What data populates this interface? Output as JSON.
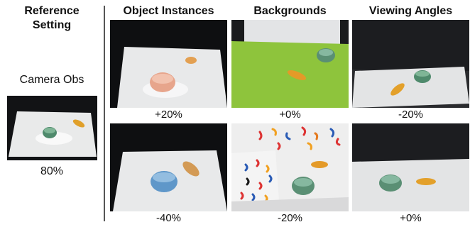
{
  "reference": {
    "header": "Reference\nSetting",
    "camera_obs_label": "Camera Obs",
    "score": "80%"
  },
  "columns": [
    {
      "header": "Object Instances",
      "top_delta": "+20%",
      "bottom_delta": "-40%"
    },
    {
      "header": "Backgrounds",
      "top_delta": "+0%",
      "bottom_delta": "-20%"
    },
    {
      "header": "Viewing Angles",
      "top_delta": "-20%",
      "bottom_delta": "+0%"
    }
  ]
}
